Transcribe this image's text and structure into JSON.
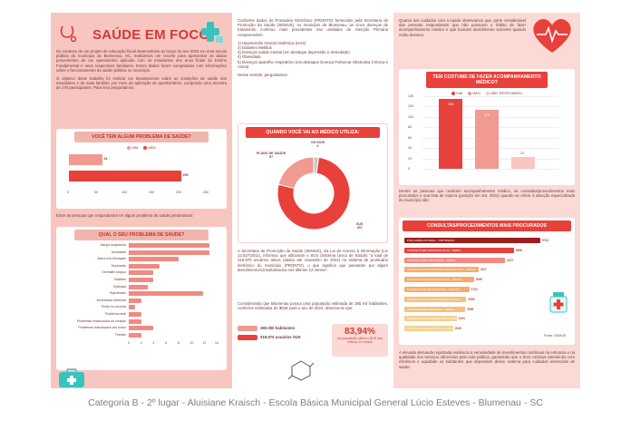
{
  "header": {
    "title": "SAÚDE EM FOCO"
  },
  "col1": {
    "intro": "No contexto de um projeto de educação fiscal desenvolvido ao longo do ano 2024 em uma escola pública do município de Blumenau, SC, realizamos um recorte para apresentar os dados provenientes de um questionário aplicado com os estudantes dos anos finais do Ensino Fundamental e seus respectivos familiares. Esses dados foram comparados com informações sobre o funcionamento da saúde pública no município.",
    "objective": "O objetivo deste trabalho foi realizar um levantamento sobre as condições de saúde dos estudantes e de suas famílias, por meio da aplicação de questionários, compondo uma amostra de 270 participantes. Para isso perguntamos:",
    "after_chart": "Entre as pessoas que responderam ter algum problema de saúde predominam:"
  },
  "chart_data": [
    {
      "type": "bar",
      "title": "VOCÊ TEM ALGUM PROBLEMA DE SAÚDE?",
      "series": [
        {
          "name": "SIM",
          "values": [
            61
          ]
        },
        {
          "name": "NÃO",
          "values": [
            206
          ]
        }
      ],
      "xticks": [
        "0",
        "50",
        "100",
        "150",
        "200",
        "250"
      ],
      "xlim": [
        0,
        250
      ],
      "colors": {
        "SIM": "#f19a92",
        "NÃO": "#e8403b"
      }
    },
    {
      "type": "bar",
      "title": "QUAL O SEU PROBLEMA DE SAÚDE?",
      "categories": [
        "Alergia respiratória",
        "Ansiedade",
        "Asma e/ou Bronquite",
        "Depressão",
        "Dermatite atópica",
        "Diabetes",
        "Epilepsia",
        "Hipertensão",
        "Intolerância alimentar",
        "Pedra no vesícula",
        "Problema renal",
        "Problemas relacionados ao coração",
        "Problemas relacionados aos ossos",
        "Tireóide"
      ],
      "values": [
        13,
        13,
        8,
        5,
        4,
        4,
        3,
        12,
        2,
        1,
        2,
        2,
        4,
        2
      ],
      "xticks": [
        "0",
        "2",
        "4",
        "6",
        "8",
        "10",
        "12",
        "14"
      ],
      "xlim": [
        0,
        14
      ]
    },
    {
      "type": "pie",
      "title": "QUANDO VOCÊ VAI AO MÉDICO UTILIZA:",
      "categories": [
        "PLANO DE SAÚDE",
        "OS DOIS",
        "SUS"
      ],
      "values": [
        57,
        6,
        207
      ],
      "colors": [
        "#f19a92",
        "#c9c9c9",
        "#e8403b"
      ]
    },
    {
      "type": "bar",
      "title": "TEM COSTUME DE FAZER ACOMPANHAMENTO MÉDICO?",
      "categories": [
        "SIM",
        "NÃO",
        "NÃO RESPONDEU"
      ],
      "values": [
        135,
        113,
        22
      ],
      "yticks": [
        "0",
        "20",
        "40",
        "60",
        "80",
        "100",
        "120",
        "140"
      ],
      "ylim": [
        0,
        140
      ],
      "colors": [
        "#e8403b",
        "#f19a92",
        "#f7c6c1"
      ]
    },
    {
      "type": "bar",
      "title": "CONSULTAS/PROCEDIMENTOS MAIS PROCURADOS",
      "categories": [
        "PSIQ AMBULATORIAL - ORTOPEDIA",
        "CONSULTA EM OFTALMOLOGIA - GERAL",
        "CONSULTA EM ORTOPEDIA - GERAL",
        "CONSULTA EM OTORRINOLARINGOLOGIA - GERAL",
        "CONSULTA EM DERMATOLOGIA - GERAL",
        "CONSULTA EM NEUROLOGIA - ADULTO",
        "CONSULTA EM GASTROENTEROLOGIA",
        "CONSULTA EM UROLOGIA - GERAL",
        "CONSULTA EM CARDIOLOGIA - ADULTO",
        "CONSULTA EM ENDOCRINOLOGIA - ADULTO"
      ],
      "values": [
        5710,
        4596,
        4227,
        3117,
        2926,
        2724,
        2605,
        2559,
        2194,
        2045
      ],
      "source": "Fonte: SEMUS"
    }
  ],
  "col2": {
    "intro": "Conforme dados do Prontuário Eletrônico (PRONTO) fornecidos pela Secretaria de Promoção da Saúde (SEMUS), no município de Blumenau, as cinco doenças de tratamento contínuo mais prevalentes nas unidades de Atenção Primária compreendem:",
    "list": [
      "1) Hipertensão Arterial Sistêmica (HAS)",
      "2) Diabetes Mellitus",
      "3) Doenças saúde mental (em destaque depressão e ansiedade)",
      "4) Obesidade",
      "5) Doenças aparelho respiratório (em destaque Doença Pulmonar Obstrutiva Crônica e Asma)"
    ],
    "lead": "Nesse sentido, perguntamos:",
    "pie_labels": {
      "plano": "PLANO DE SAÚDE",
      "plano_val": "57",
      "dois": "OS DOIS",
      "dois_val": "6",
      "sus": "SUS",
      "sus_val": "207"
    },
    "semus": "A Secretaria de Promoção da Saúde (SEMUS), via Lei de Acesso à Informação (Lei 12.527/2011), informou que utilizaram o SUS (Sistema Único de Saúde) \"a total de 318.970 usuários ativos (dados até novembro de 2024) no sistema de prontuário eletrônico do município (PRONTO), o que significa que passaram por algum atendimento/consulta/vacina nos últimos 12 meses\".",
    "pop": "Considerando que Blumenau possui uma população estimada de 380 mil habitantes, conforme estimativa do IBGE para o ano de 2024, observa-se que:",
    "hab": "380.000 habitantes",
    "users": "318.970 usuários SUS",
    "pct": "83,94%",
    "pct_caption": "da população utiliza o SUS nos últimos 12 meses"
  },
  "col3": {
    "intro": "Quanto aos cuidados com a saúde observamos que, parte considerável das pessoas responderam que não possuem o hábito de fazer acompanhamento médico e que buscam atendimento somente quando estão doentes.",
    "middle": "Dentre as pessoas que realizam acompanhamento médico, as consultas/procedimentos mais procurados e sua lista de espera (posição em set. 2024) quando se refere à atenção especializada do município são:",
    "legend_sim": "SIM",
    "legend_nao": "NÃO",
    "legend_nr": "NÃO RESPONDEU",
    "bar_vals": [
      "135",
      "113",
      "22"
    ],
    "closing": "A elevada demanda registrada evidencia a necessidade de investimentos contínuos na estrutura e na qualidade dos serviços oferecidos pela rede pública, garantindo que o SUS continue atendendo com eficiência e equidade os habitantes que dependem desse sistema para cuidados essenciais de saúde."
  },
  "footer": "Categoria B - 2º lugar - Aluisiane Kraisch - Escola Básica Municipal General Lúcio Esteves - Blumenau - SC"
}
